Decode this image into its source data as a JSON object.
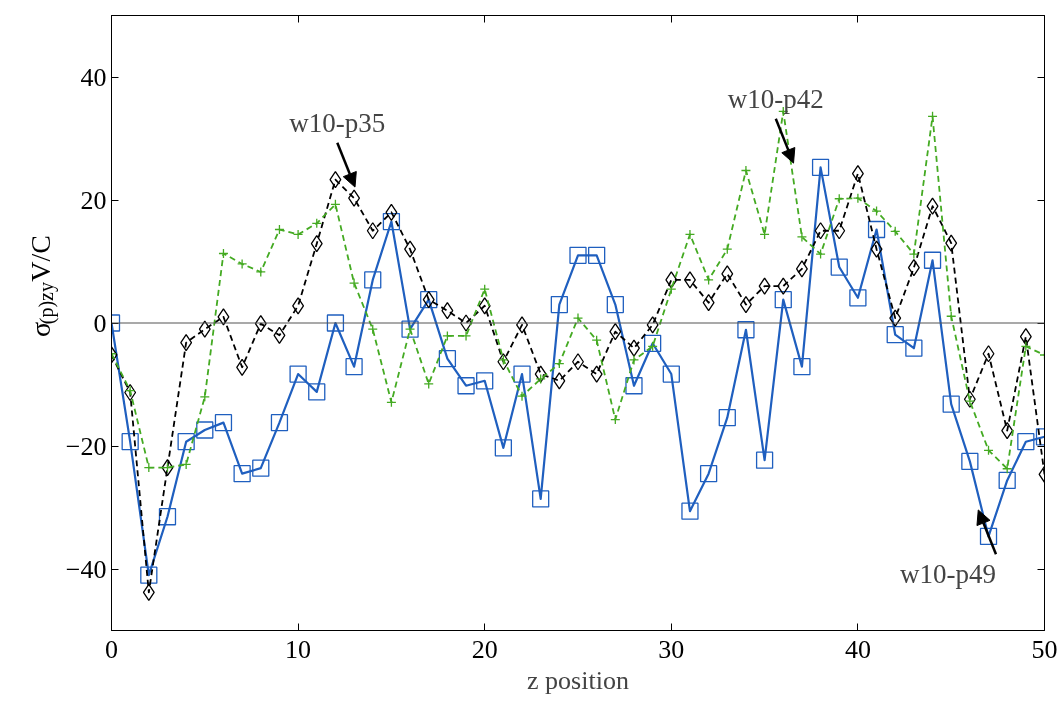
{
  "chart_data": {
    "type": "line",
    "xlabel": "z position",
    "ylabel": "σ$_{(p)zy}$V/C",
    "x": [
      0,
      1,
      2,
      3,
      4,
      5,
      6,
      7,
      8,
      9,
      10,
      11,
      12,
      13,
      14,
      15,
      16,
      17,
      18,
      19,
      20,
      21,
      22,
      23,
      24,
      25,
      26,
      27,
      28,
      29,
      30,
      31,
      32,
      33,
      34,
      35,
      36,
      37,
      38,
      39,
      40,
      41,
      42,
      43,
      44,
      45,
      46,
      47,
      48,
      49,
      50
    ],
    "series": [
      {
        "color": "#1f5fbf",
        "marker": "square",
        "line_style": "solid",
        "values": [
          0,
          -19.3,
          -41,
          -31.5,
          -19.3,
          -17.4,
          -16.2,
          -24.5,
          -23.6,
          -16.2,
          -8.3,
          -11.2,
          0,
          -7.1,
          7,
          16.5,
          -1,
          3.8,
          -5.8,
          -10.2,
          -9.4,
          -20.3,
          -8.3,
          -28.6,
          3,
          11,
          11,
          3,
          -10.2,
          -3.3,
          -8.3,
          -30.6,
          -24.5,
          -15.4,
          -1.1,
          -22.3,
          3.8,
          -7.1,
          25.3,
          9.1,
          4.1,
          15.2,
          -1.9,
          -4.1,
          10.2,
          -13.2,
          -22.5,
          -34.7,
          -25.6,
          -19.3,
          -18.5
        ]
      },
      {
        "color": "#000000",
        "marker": "diamond",
        "line_style": "dashed",
        "values": [
          -5.2,
          -11.3,
          -43.8,
          -23.5,
          -3.2,
          -1,
          1,
          -7.2,
          -0.1,
          -2,
          2.8,
          12.9,
          23.3,
          20.3,
          15,
          18,
          12,
          3.8,
          2,
          0,
          2.8,
          -6.3,
          -0.3,
          -8.3,
          -9.4,
          -6.3,
          -8.3,
          -1.4,
          -4.1,
          -0.3,
          7,
          7,
          3.3,
          8,
          3,
          6,
          6,
          8.8,
          15,
          15,
          24.3,
          12,
          0.8,
          9,
          19,
          13,
          -12.4,
          -5,
          -17.5,
          -2.2,
          -24.6
        ]
      },
      {
        "color": "#44aa22",
        "marker": "cross",
        "line_style": "dashed",
        "values": [
          -5,
          -11,
          -23.5,
          -23.5,
          -23,
          -12,
          11.3,
          9.6,
          8.3,
          15.2,
          14.4,
          16.2,
          19.3,
          6.5,
          -1,
          -12.9,
          -1,
          -9.9,
          -2.1,
          -2.1,
          5.5,
          -6,
          -11.9,
          -9.1,
          -6.6,
          0.8,
          -2.8,
          -15.7,
          -6,
          -3.8,
          5.5,
          14.4,
          7,
          12,
          24.8,
          14.4,
          34.4,
          14,
          11.2,
          20.2,
          20.3,
          18.2,
          14.9,
          11.2,
          33.6,
          1.1,
          -12.7,
          -20.7,
          -23.7,
          -3.8,
          -5.2
        ]
      }
    ],
    "xlim": [
      0,
      50
    ],
    "xticks": [
      0,
      10,
      20,
      30,
      40,
      50
    ],
    "ylim": [
      -50,
      50
    ],
    "yticks": [
      -40,
      -20,
      0,
      20,
      40
    ],
    "ref_lines": [
      {
        "axis": "y",
        "value": 0,
        "color": "#555555"
      }
    ],
    "annotations": [
      {
        "text": "w10-p35",
        "x": 13,
        "y": 20.3
      },
      {
        "text": "w10-p42",
        "x": 36.5,
        "y": 24.2
      },
      {
        "text": "w10-p49",
        "x": 46.5,
        "y": -28.6
      }
    ]
  }
}
